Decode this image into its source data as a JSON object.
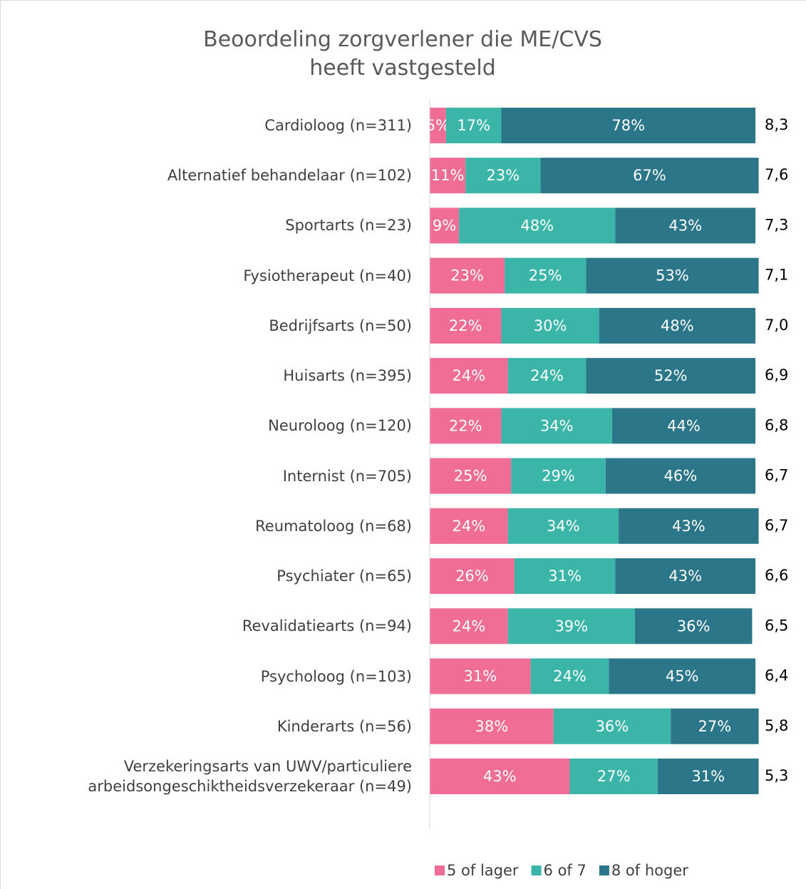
{
  "chart_data": {
    "type": "stacked-bar-horizontal",
    "title": "Beoordeling zorgverlener die ME/CVS heeft vastgesteld",
    "categories": [
      "Cardioloog (n=311)",
      "Alternatief behandelaar (n=102)",
      "Sportarts (n=23)",
      "Fysiotherapeut (n=40)",
      "Bedrijfsarts (n=50)",
      "Huisarts (n=395)",
      "Neuroloog (n=120)",
      "Internist (n=705)",
      "Reumatoloog (n=68)",
      "Psychiater (n=65)",
      "Revalidatiearts (n=94)",
      "Psycholoog (n=103)",
      "Kinderarts (n=56)",
      "Verzekeringsarts van UWV/particuliere arbeidsongeschiktheidsverzekeraar (n=49)"
    ],
    "series": [
      {
        "name": "5 of lager",
        "color": "#f06d96",
        "values": [
          5,
          11,
          9,
          23,
          22,
          24,
          22,
          25,
          24,
          26,
          24,
          31,
          38,
          43
        ],
        "value_labels": [
          "5%",
          "11%",
          "9%",
          "23%",
          "22%",
          "24%",
          "22%",
          "25%",
          "24%",
          "26%",
          "24%",
          "31%",
          "38%",
          "43%"
        ]
      },
      {
        "name": "6 of 7",
        "color": "#3ab5a8",
        "values": [
          17,
          23,
          48,
          25,
          30,
          24,
          34,
          29,
          34,
          31,
          39,
          24,
          36,
          27
        ],
        "value_labels": [
          "17%",
          "23%",
          "48%",
          "25%",
          "30%",
          "24%",
          "34%",
          "29%",
          "34%",
          "31%",
          "39%",
          "24%",
          "36%",
          "27%"
        ]
      },
      {
        "name": "8 of hoger",
        "color": "#2b7689",
        "values": [
          78,
          67,
          43,
          53,
          48,
          52,
          44,
          46,
          43,
          43,
          36,
          45,
          27,
          31
        ],
        "value_labels": [
          "78%",
          "67%",
          "43%",
          "53%",
          "48%",
          "52%",
          "44%",
          "46%",
          "43%",
          "43%",
          "36%",
          "45%",
          "27%",
          "31%"
        ]
      }
    ],
    "averages": [
      "8,3",
      "7,6",
      "7,3",
      "7,1",
      "7,0",
      "6,9",
      "6,8",
      "6,7",
      "6,7",
      "6,6",
      "6,5",
      "6,4",
      "5,8",
      "5,3"
    ],
    "xlim": [
      0,
      100
    ],
    "legend": "bottom"
  }
}
